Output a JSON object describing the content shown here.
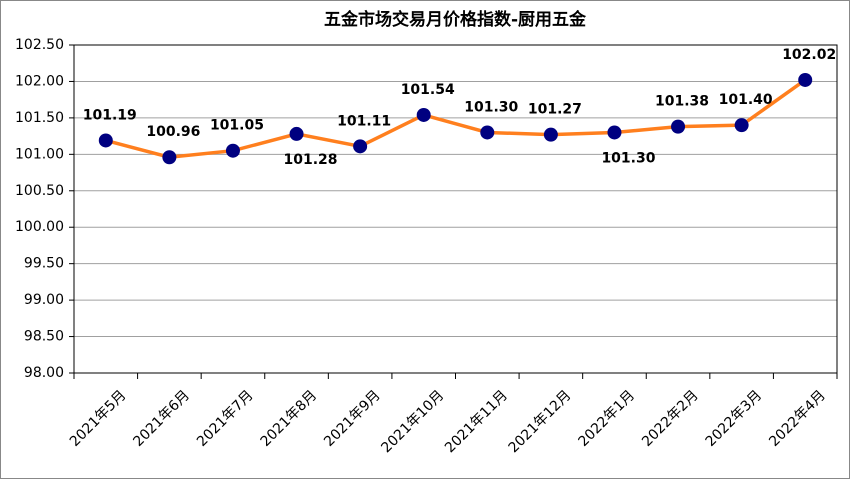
{
  "chart_data": {
    "type": "line",
    "title": "五金市场交易月价格指数-厨用五金",
    "categories": [
      "2021年5月",
      "2021年6月",
      "2021年7月",
      "2021年8月",
      "2021年9月",
      "2021年10月",
      "2021年11月",
      "2021年12月",
      "2022年1月",
      "2022年2月",
      "2022年3月",
      "2022年4月"
    ],
    "series": [
      {
        "name": "厨用五金",
        "color": "#ff7f1e",
        "marker_color": "#000080",
        "values": [
          101.19,
          100.96,
          101.05,
          101.28,
          101.11,
          101.54,
          101.3,
          101.27,
          101.3,
          101.38,
          101.4,
          102.02
        ],
        "value_labels": [
          "101.19",
          "100.96",
          "101.05",
          "101.28",
          "101.11",
          "101.54",
          "101.30",
          "101.27",
          "101.30",
          "101.38",
          "101.40",
          "102.02"
        ]
      }
    ],
    "ylim": [
      98,
      102.5
    ],
    "yticks": [
      {
        "value": 98,
        "label": "98.00"
      },
      {
        "value": 98.5,
        "label": "98.50"
      },
      {
        "value": 99,
        "label": "99.00"
      },
      {
        "value": 99.5,
        "label": "99.50"
      },
      {
        "value": 100,
        "label": "100.00"
      },
      {
        "value": 100.5,
        "label": "100.50"
      },
      {
        "value": 101,
        "label": "101.00"
      },
      {
        "value": 101.5,
        "label": "101.50"
      },
      {
        "value": 102,
        "label": "102.00"
      },
      {
        "value": 102.5,
        "label": "102.50"
      }
    ],
    "grid": true
  }
}
